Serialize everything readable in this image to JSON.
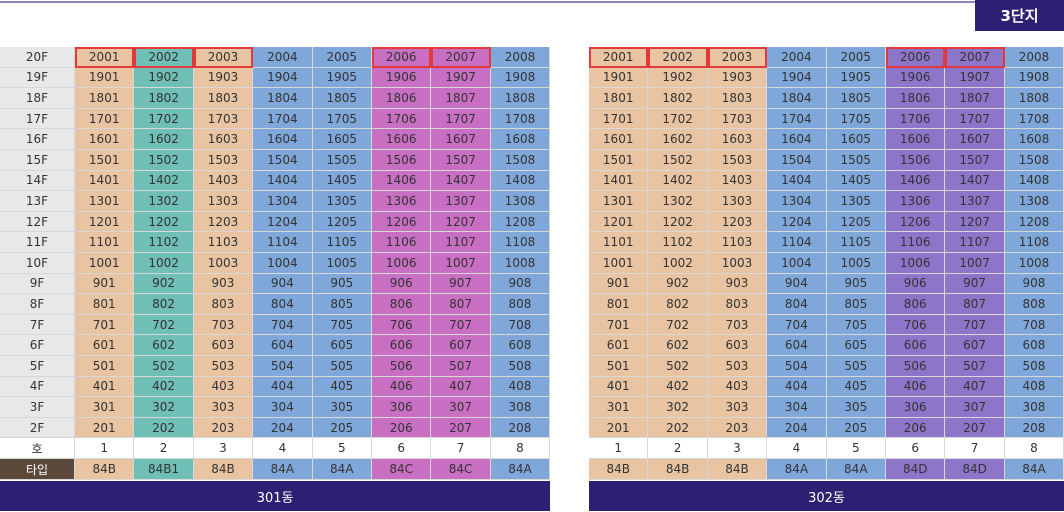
{
  "badge": "3단지",
  "floor_labels": [
    "20F",
    "19F",
    "18F",
    "17F",
    "16F",
    "15F",
    "14F",
    "13F",
    "12F",
    "11F",
    "10F",
    "9F",
    "8F",
    "7F",
    "6F",
    "5F",
    "4F",
    "3F",
    "2F"
  ],
  "unit_label": "호",
  "type_label": "타입",
  "buildings": [
    {
      "name": "301동",
      "rows": [
        [
          "2001",
          "2002",
          "2003",
          "2004",
          "2005",
          "2006",
          "2007",
          "2008"
        ],
        [
          "1901",
          "1902",
          "1903",
          "1904",
          "1905",
          "1906",
          "1907",
          "1908"
        ],
        [
          "1801",
          "1802",
          "1803",
          "1804",
          "1805",
          "1806",
          "1807",
          "1808"
        ],
        [
          "1701",
          "1702",
          "1703",
          "1704",
          "1705",
          "1706",
          "1707",
          "1708"
        ],
        [
          "1601",
          "1602",
          "1603",
          "1604",
          "1605",
          "1606",
          "1607",
          "1608"
        ],
        [
          "1501",
          "1502",
          "1503",
          "1504",
          "1505",
          "1506",
          "1507",
          "1508"
        ],
        [
          "1401",
          "1402",
          "1403",
          "1404",
          "1405",
          "1406",
          "1407",
          "1408"
        ],
        [
          "1301",
          "1302",
          "1303",
          "1304",
          "1305",
          "1306",
          "1307",
          "1308"
        ],
        [
          "1201",
          "1202",
          "1203",
          "1204",
          "1205",
          "1206",
          "1207",
          "1208"
        ],
        [
          "1101",
          "1102",
          "1103",
          "1104",
          "1105",
          "1106",
          "1107",
          "1108"
        ],
        [
          "1001",
          "1002",
          "1003",
          "1004",
          "1005",
          "1006",
          "1007",
          "1008"
        ],
        [
          "901",
          "902",
          "903",
          "904",
          "905",
          "906",
          "907",
          "908"
        ],
        [
          "801",
          "802",
          "803",
          "804",
          "805",
          "806",
          "807",
          "808"
        ],
        [
          "701",
          "702",
          "703",
          "704",
          "705",
          "706",
          "707",
          "708"
        ],
        [
          "601",
          "602",
          "603",
          "604",
          "605",
          "606",
          "607",
          "608"
        ],
        [
          "501",
          "502",
          "503",
          "504",
          "505",
          "506",
          "507",
          "508"
        ],
        [
          "401",
          "402",
          "403",
          "404",
          "405",
          "406",
          "407",
          "408"
        ],
        [
          "301",
          "302",
          "303",
          "304",
          "305",
          "306",
          "307",
          "308"
        ],
        [
          "201",
          "202",
          "203",
          "204",
          "205",
          "206",
          "207",
          "208"
        ]
      ],
      "units": [
        "1",
        "2",
        "3",
        "4",
        "5",
        "6",
        "7",
        "8"
      ],
      "types": [
        "84B",
        "84B1",
        "84B",
        "84A",
        "84A",
        "84C",
        "84C",
        "84A"
      ]
    },
    {
      "name": "302동",
      "rows": [
        [
          "2001",
          "2002",
          "2003",
          "2004",
          "2005",
          "2006",
          "2007",
          "2008"
        ],
        [
          "1901",
          "1902",
          "1903",
          "1904",
          "1905",
          "1906",
          "1907",
          "1908"
        ],
        [
          "1801",
          "1802",
          "1803",
          "1804",
          "1805",
          "1806",
          "1807",
          "1808"
        ],
        [
          "1701",
          "1702",
          "1703",
          "1704",
          "1705",
          "1706",
          "1707",
          "1708"
        ],
        [
          "1601",
          "1602",
          "1603",
          "1604",
          "1605",
          "1606",
          "1607",
          "1608"
        ],
        [
          "1501",
          "1502",
          "1503",
          "1504",
          "1505",
          "1506",
          "1507",
          "1508"
        ],
        [
          "1401",
          "1402",
          "1403",
          "1404",
          "1405",
          "1406",
          "1407",
          "1408"
        ],
        [
          "1301",
          "1302",
          "1303",
          "1304",
          "1305",
          "1306",
          "1307",
          "1308"
        ],
        [
          "1201",
          "1202",
          "1203",
          "1204",
          "1205",
          "1206",
          "1207",
          "1208"
        ],
        [
          "1101",
          "1102",
          "1103",
          "1104",
          "1105",
          "1106",
          "1107",
          "1108"
        ],
        [
          "1001",
          "1002",
          "1003",
          "1004",
          "1005",
          "1006",
          "1007",
          "1008"
        ],
        [
          "901",
          "902",
          "903",
          "904",
          "905",
          "906",
          "907",
          "908"
        ],
        [
          "801",
          "802",
          "803",
          "804",
          "805",
          "806",
          "807",
          "808"
        ],
        [
          "701",
          "702",
          "703",
          "704",
          "705",
          "706",
          "707",
          "708"
        ],
        [
          "601",
          "602",
          "603",
          "604",
          "605",
          "606",
          "607",
          "608"
        ],
        [
          "501",
          "502",
          "503",
          "504",
          "505",
          "506",
          "507",
          "508"
        ],
        [
          "401",
          "402",
          "403",
          "404",
          "405",
          "406",
          "407",
          "408"
        ],
        [
          "301",
          "302",
          "303",
          "304",
          "305",
          "306",
          "307",
          "308"
        ],
        [
          "201",
          "202",
          "203",
          "204",
          "205",
          "206",
          "207",
          "208"
        ]
      ],
      "units": [
        "1",
        "2",
        "3",
        "4",
        "5",
        "6",
        "7",
        "8"
      ],
      "types": [
        "84B",
        "84B",
        "84B",
        "84A",
        "84A",
        "84D",
        "84D",
        "84A"
      ]
    }
  ]
}
